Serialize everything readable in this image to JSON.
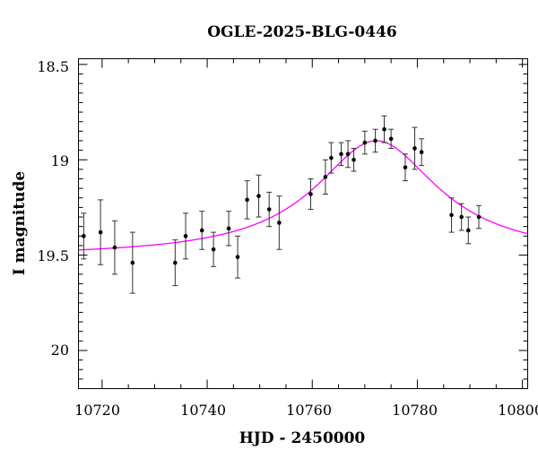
{
  "chart_data": {
    "type": "scatter",
    "title": "OGLE-2025-BLG-0446",
    "xlabel": "HJD - 2450000",
    "ylabel": "I magnitude",
    "xlim": [
      10715.5,
      10801
    ],
    "ylim": [
      18.47,
      20.2
    ],
    "y_inverted": true,
    "grid": false,
    "x_ticks": [
      10720,
      10740,
      10760,
      10780,
      10800
    ],
    "x_tick_labels": [
      "10720",
      "10740",
      "10760",
      "10780",
      "10800"
    ],
    "y_ticks": [
      18.5,
      19,
      19.5,
      20
    ],
    "y_tick_labels": [
      "18.5",
      "19",
      "19.5",
      "20"
    ],
    "series": [
      {
        "kind": "points_with_errorbars",
        "color": "#000000",
        "points": [
          {
            "x": 10716.5,
            "y": 19.4,
            "err": 0.12
          },
          {
            "x": 10719.7,
            "y": 19.38,
            "err": 0.17
          },
          {
            "x": 10722.4,
            "y": 19.46,
            "err": 0.14
          },
          {
            "x": 10725.8,
            "y": 19.54,
            "err": 0.16
          },
          {
            "x": 10733.9,
            "y": 19.54,
            "err": 0.12
          },
          {
            "x": 10735.9,
            "y": 19.4,
            "err": 0.12
          },
          {
            "x": 10739.0,
            "y": 19.37,
            "err": 0.1
          },
          {
            "x": 10741.2,
            "y": 19.47,
            "err": 0.09
          },
          {
            "x": 10744.1,
            "y": 19.36,
            "err": 0.09
          },
          {
            "x": 10745.8,
            "y": 19.51,
            "err": 0.11
          },
          {
            "x": 10747.6,
            "y": 19.21,
            "err": 0.1
          },
          {
            "x": 10749.8,
            "y": 19.19,
            "err": 0.11
          },
          {
            "x": 10751.8,
            "y": 19.26,
            "err": 0.09
          },
          {
            "x": 10753.7,
            "y": 19.33,
            "err": 0.14
          },
          {
            "x": 10759.7,
            "y": 19.18,
            "err": 0.08
          },
          {
            "x": 10762.5,
            "y": 19.09,
            "err": 0.09
          },
          {
            "x": 10763.6,
            "y": 18.99,
            "err": 0.08
          },
          {
            "x": 10765.5,
            "y": 18.97,
            "err": 0.06
          },
          {
            "x": 10766.8,
            "y": 18.97,
            "err": 0.07
          },
          {
            "x": 10767.9,
            "y": 19.0,
            "err": 0.06
          },
          {
            "x": 10770.0,
            "y": 18.91,
            "err": 0.06
          },
          {
            "x": 10772.0,
            "y": 18.9,
            "err": 0.06
          },
          {
            "x": 10773.7,
            "y": 18.84,
            "err": 0.07
          },
          {
            "x": 10775.0,
            "y": 18.89,
            "err": 0.05
          },
          {
            "x": 10777.7,
            "y": 19.04,
            "err": 0.07
          },
          {
            "x": 10779.5,
            "y": 18.94,
            "err": 0.11
          },
          {
            "x": 10780.8,
            "y": 18.96,
            "err": 0.07
          },
          {
            "x": 10786.5,
            "y": 19.29,
            "err": 0.09
          },
          {
            "x": 10788.4,
            "y": 19.3,
            "err": 0.07
          },
          {
            "x": 10789.7,
            "y": 19.37,
            "err": 0.07
          },
          {
            "x": 10791.7,
            "y": 19.3,
            "err": 0.06
          }
        ]
      },
      {
        "kind": "model_curve",
        "color": "#ff00ff",
        "baseline_mag": 19.51,
        "peak_mag": 18.9,
        "peak_x": 10772.2,
        "timescale": 12.5
      }
    ]
  }
}
